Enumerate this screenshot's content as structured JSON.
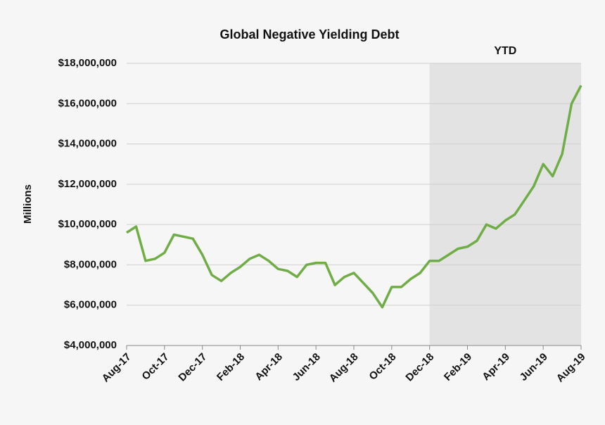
{
  "chart_data": {
    "type": "line",
    "title": "Global Negative Yielding Debt",
    "y_label": "Millions",
    "categories": [
      "Aug-17",
      null,
      null,
      null,
      "Oct-17",
      null,
      null,
      null,
      "Dec-17",
      null,
      null,
      null,
      "Feb-18",
      null,
      null,
      null,
      "Apr-18",
      null,
      null,
      null,
      "Jun-18",
      null,
      null,
      null,
      "Aug-18",
      null,
      null,
      null,
      "Oct-18",
      null,
      null,
      null,
      "Dec-18",
      null,
      null,
      null,
      "Feb-19",
      null,
      null,
      null,
      "Apr-19",
      null,
      null,
      null,
      "Jun-19",
      null,
      null,
      null,
      "Aug-19"
    ],
    "series": [
      {
        "name": "Global Negative Yielding Debt",
        "color": "#70ad47",
        "values": [
          9600000,
          9900000,
          8200000,
          8300000,
          8600000,
          9500000,
          9400000,
          9300000,
          8500000,
          7500000,
          7200000,
          7600000,
          7900000,
          8300000,
          8500000,
          8200000,
          7800000,
          7700000,
          7400000,
          8000000,
          8100000,
          8100000,
          7000000,
          7400000,
          7600000,
          7100000,
          6600000,
          5900000,
          6900000,
          6900000,
          7300000,
          7600000,
          8200000,
          8200000,
          8500000,
          8800000,
          8900000,
          9200000,
          10000000,
          9800000,
          10200000,
          10500000,
          11200000,
          11900000,
          13000000,
          12400000,
          13500000,
          16000000,
          16900000
        ]
      }
    ],
    "ylim": [
      4000000,
      18000000
    ],
    "yticks": [
      {
        "value": 4000000,
        "label": "$4,000,000"
      },
      {
        "value": 6000000,
        "label": "$6,000,000"
      },
      {
        "value": 8000000,
        "label": "$8,000,000"
      },
      {
        "value": 10000000,
        "label": "$10,000,000"
      },
      {
        "value": 12000000,
        "label": "$12,000,000"
      },
      {
        "value": 14000000,
        "label": "$14,000,000"
      },
      {
        "value": 16000000,
        "label": "$16,000,000"
      },
      {
        "value": 18000000,
        "label": "$18,000,000"
      }
    ],
    "grid": true,
    "shaded_region": {
      "label": "YTD",
      "start": "Dec-18",
      "color": "#e3e3e3"
    }
  }
}
